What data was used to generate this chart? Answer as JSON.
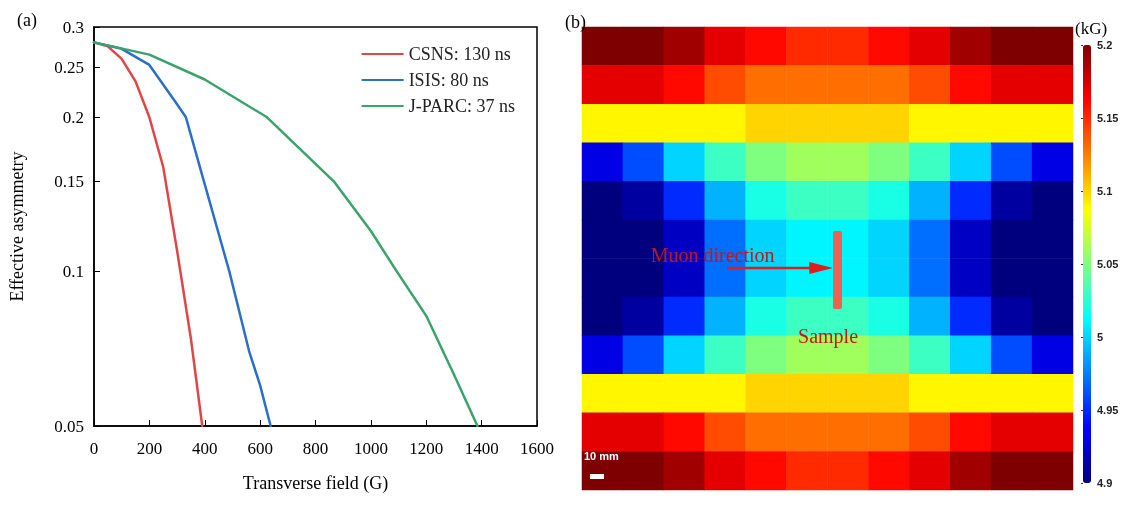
{
  "chart_data": [
    {
      "type": "line",
      "title": "(a)",
      "xlabel": "Transverse field (G)",
      "ylabel": "Effective asymmetry",
      "log": "y",
      "xlim": [
        0,
        1600
      ],
      "xticks": [
        0,
        200,
        400,
        600,
        800,
        1000,
        1200,
        1400,
        1600
      ],
      "ylim": [
        0.05,
        0.3
      ],
      "yticks": [
        0.05,
        0.1,
        0.15,
        0.2,
        0.25,
        0.3
      ],
      "grid": false,
      "legend": "top right",
      "line_style": "solid",
      "marker": "none",
      "series": [
        {
          "name": "CSNS: 130 ns",
          "color": "#e04646",
          "x": [
            0,
            50,
            100,
            150,
            200,
            250,
            300,
            350,
            391
          ],
          "values": [
            0.28,
            0.275,
            0.26,
            0.235,
            0.2,
            0.16,
            0.11,
            0.074,
            0.05
          ]
        },
        {
          "name": "ISIS: 80 ns",
          "color": "#2a6fc9",
          "x": [
            0,
            100,
            200,
            300,
            332,
            397,
            489,
            560,
            600,
            638
          ],
          "values": [
            0.28,
            0.272,
            0.253,
            0.212,
            0.2,
            0.15,
            0.1,
            0.07,
            0.06,
            0.05
          ]
        },
        {
          "name": "J-PARC: 37 ns",
          "color": "#3aa36a",
          "x": [
            0,
            200,
            400,
            625,
            866,
            1000,
            1094,
            1200,
            1300,
            1385
          ],
          "values": [
            0.28,
            0.265,
            0.237,
            0.2,
            0.15,
            0.12,
            0.1,
            0.082,
            0.063,
            0.05
          ]
        }
      ]
    },
    {
      "type": "heatmap",
      "title": "(b)",
      "clabel": "(kG)",
      "clim": [
        4.9,
        5.2
      ],
      "cticks": [
        4.9,
        4.95,
        5,
        5.05,
        5.1,
        5.15,
        5.2
      ],
      "annotations": [
        "Muon direction",
        "Sample",
        "10 mm"
      ],
      "categories": [
        null,
        null,
        null,
        null,
        null,
        null,
        null,
        null,
        null,
        null,
        null,
        null
      ],
      "y_categories": [
        null,
        null,
        null,
        null,
        null,
        null,
        null,
        null,
        null,
        null,
        null,
        null
      ],
      "cells": [
        [
          5.2,
          5.2,
          5.19,
          5.17,
          5.16,
          5.15,
          5.15,
          5.16,
          5.17,
          5.19,
          5.2,
          5.2
        ],
        [
          5.17,
          5.17,
          5.16,
          5.14,
          5.13,
          5.13,
          5.13,
          5.13,
          5.14,
          5.16,
          5.17,
          5.17
        ],
        [
          5.09,
          5.09,
          5.09,
          5.09,
          5.1,
          5.1,
          5.1,
          5.1,
          5.09,
          5.09,
          5.09,
          5.09
        ],
        [
          4.93,
          4.96,
          5,
          5.03,
          5.05,
          5.06,
          5.06,
          5.05,
          5.03,
          5,
          4.96,
          4.93
        ],
        [
          4.9,
          4.91,
          4.95,
          4.99,
          5.02,
          5.03,
          5.03,
          5.02,
          4.99,
          4.95,
          4.91,
          4.9
        ],
        [
          4.9,
          4.9,
          4.92,
          4.97,
          5,
          5.01,
          5.01,
          5,
          4.97,
          4.92,
          4.9,
          4.9
        ],
        [
          4.9,
          4.9,
          4.92,
          4.97,
          5,
          5.01,
          5.01,
          5,
          4.97,
          4.92,
          4.9,
          4.9
        ],
        [
          4.9,
          4.91,
          4.95,
          4.99,
          5.02,
          5.03,
          5.03,
          5.02,
          4.99,
          4.95,
          4.91,
          4.9
        ],
        [
          4.93,
          4.96,
          5,
          5.03,
          5.05,
          5.06,
          5.06,
          5.05,
          5.03,
          5,
          4.96,
          4.93
        ],
        [
          5.09,
          5.09,
          5.09,
          5.09,
          5.1,
          5.1,
          5.1,
          5.1,
          5.09,
          5.09,
          5.09,
          5.09
        ],
        [
          5.17,
          5.17,
          5.16,
          5.14,
          5.13,
          5.13,
          5.13,
          5.13,
          5.14,
          5.16,
          5.17,
          5.17
        ],
        [
          5.2,
          5.2,
          5.19,
          5.17,
          5.16,
          5.15,
          5.15,
          5.16,
          5.17,
          5.19,
          5.2,
          5.2
        ]
      ]
    }
  ]
}
